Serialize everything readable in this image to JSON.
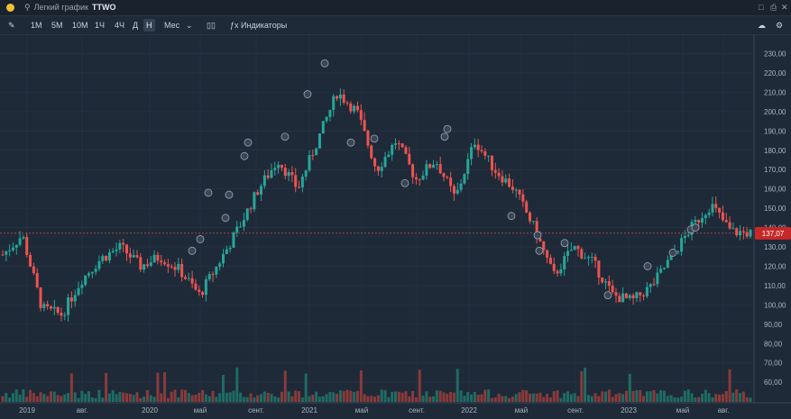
{
  "titlebar": {
    "search_prefix": "Легкий график",
    "ticker": "TTWO"
  },
  "toolbar": {
    "intervals": [
      "1М",
      "5М",
      "10М",
      "1Ч",
      "4Ч",
      "Д",
      "Н",
      "Мес"
    ],
    "active_interval": "Н",
    "indicators_label": "Индикаторы"
  },
  "chart_data": {
    "type": "candlestick",
    "symbol": "TTWO",
    "interval": "Н",
    "last_price": "137,07",
    "y_ticks": [
      "230,00",
      "220,00",
      "210,00",
      "200,00",
      "190,00",
      "180,00",
      "170,00",
      "160,00",
      "150,00",
      "140,00",
      "130,00",
      "120,00",
      "110,00",
      "100,00",
      "90,00",
      "80,00",
      "70,00",
      "60,00"
    ],
    "x_ticks": [
      "2019",
      "авг.",
      "2020",
      "май",
      "сент.",
      "2021",
      "май",
      "сент.",
      "2022",
      "май",
      "сент.",
      "2023",
      "май",
      "авг."
    ],
    "approx_close_path": [
      {
        "x": "2019",
        "y": 126
      },
      {
        "x": "2019",
        "y": 136
      },
      {
        "x": "2019",
        "y": 98
      },
      {
        "x": "2019",
        "y": 95
      },
      {
        "x": "авг.",
        "y": 113
      },
      {
        "x": "авг.",
        "y": 124
      },
      {
        "x": "авг.",
        "y": 130
      },
      {
        "x": "авг.",
        "y": 120
      },
      {
        "x": "2020",
        "y": 125
      },
      {
        "x": "2020",
        "y": 118
      },
      {
        "x": "2020",
        "y": 105
      },
      {
        "x": "2020",
        "y": 122
      },
      {
        "x": "май",
        "y": 140
      },
      {
        "x": "май",
        "y": 160
      },
      {
        "x": "сент.",
        "y": 175
      },
      {
        "x": "сент.",
        "y": 160
      },
      {
        "x": "сент.",
        "y": 185
      },
      {
        "x": "2021",
        "y": 210
      },
      {
        "x": "2021",
        "y": 200
      },
      {
        "x": "2021",
        "y": 170
      },
      {
        "x": "май",
        "y": 185
      },
      {
        "x": "май",
        "y": 165
      },
      {
        "x": "сент.",
        "y": 175
      },
      {
        "x": "сент.",
        "y": 155
      },
      {
        "x": "сент.",
        "y": 185
      },
      {
        "x": "2022",
        "y": 170
      },
      {
        "x": "2022",
        "y": 160
      },
      {
        "x": "2022",
        "y": 140
      },
      {
        "x": "май",
        "y": 115
      },
      {
        "x": "май",
        "y": 130
      },
      {
        "x": "сент.",
        "y": 122
      },
      {
        "x": "сент.",
        "y": 105
      },
      {
        "x": "сент.",
        "y": 102
      },
      {
        "x": "2023",
        "y": 110
      },
      {
        "x": "2023",
        "y": 125
      },
      {
        "x": "май",
        "y": 140
      },
      {
        "x": "май",
        "y": 152
      },
      {
        "x": "авг.",
        "y": 138
      },
      {
        "x": "авг.",
        "y": 137
      }
    ]
  }
}
